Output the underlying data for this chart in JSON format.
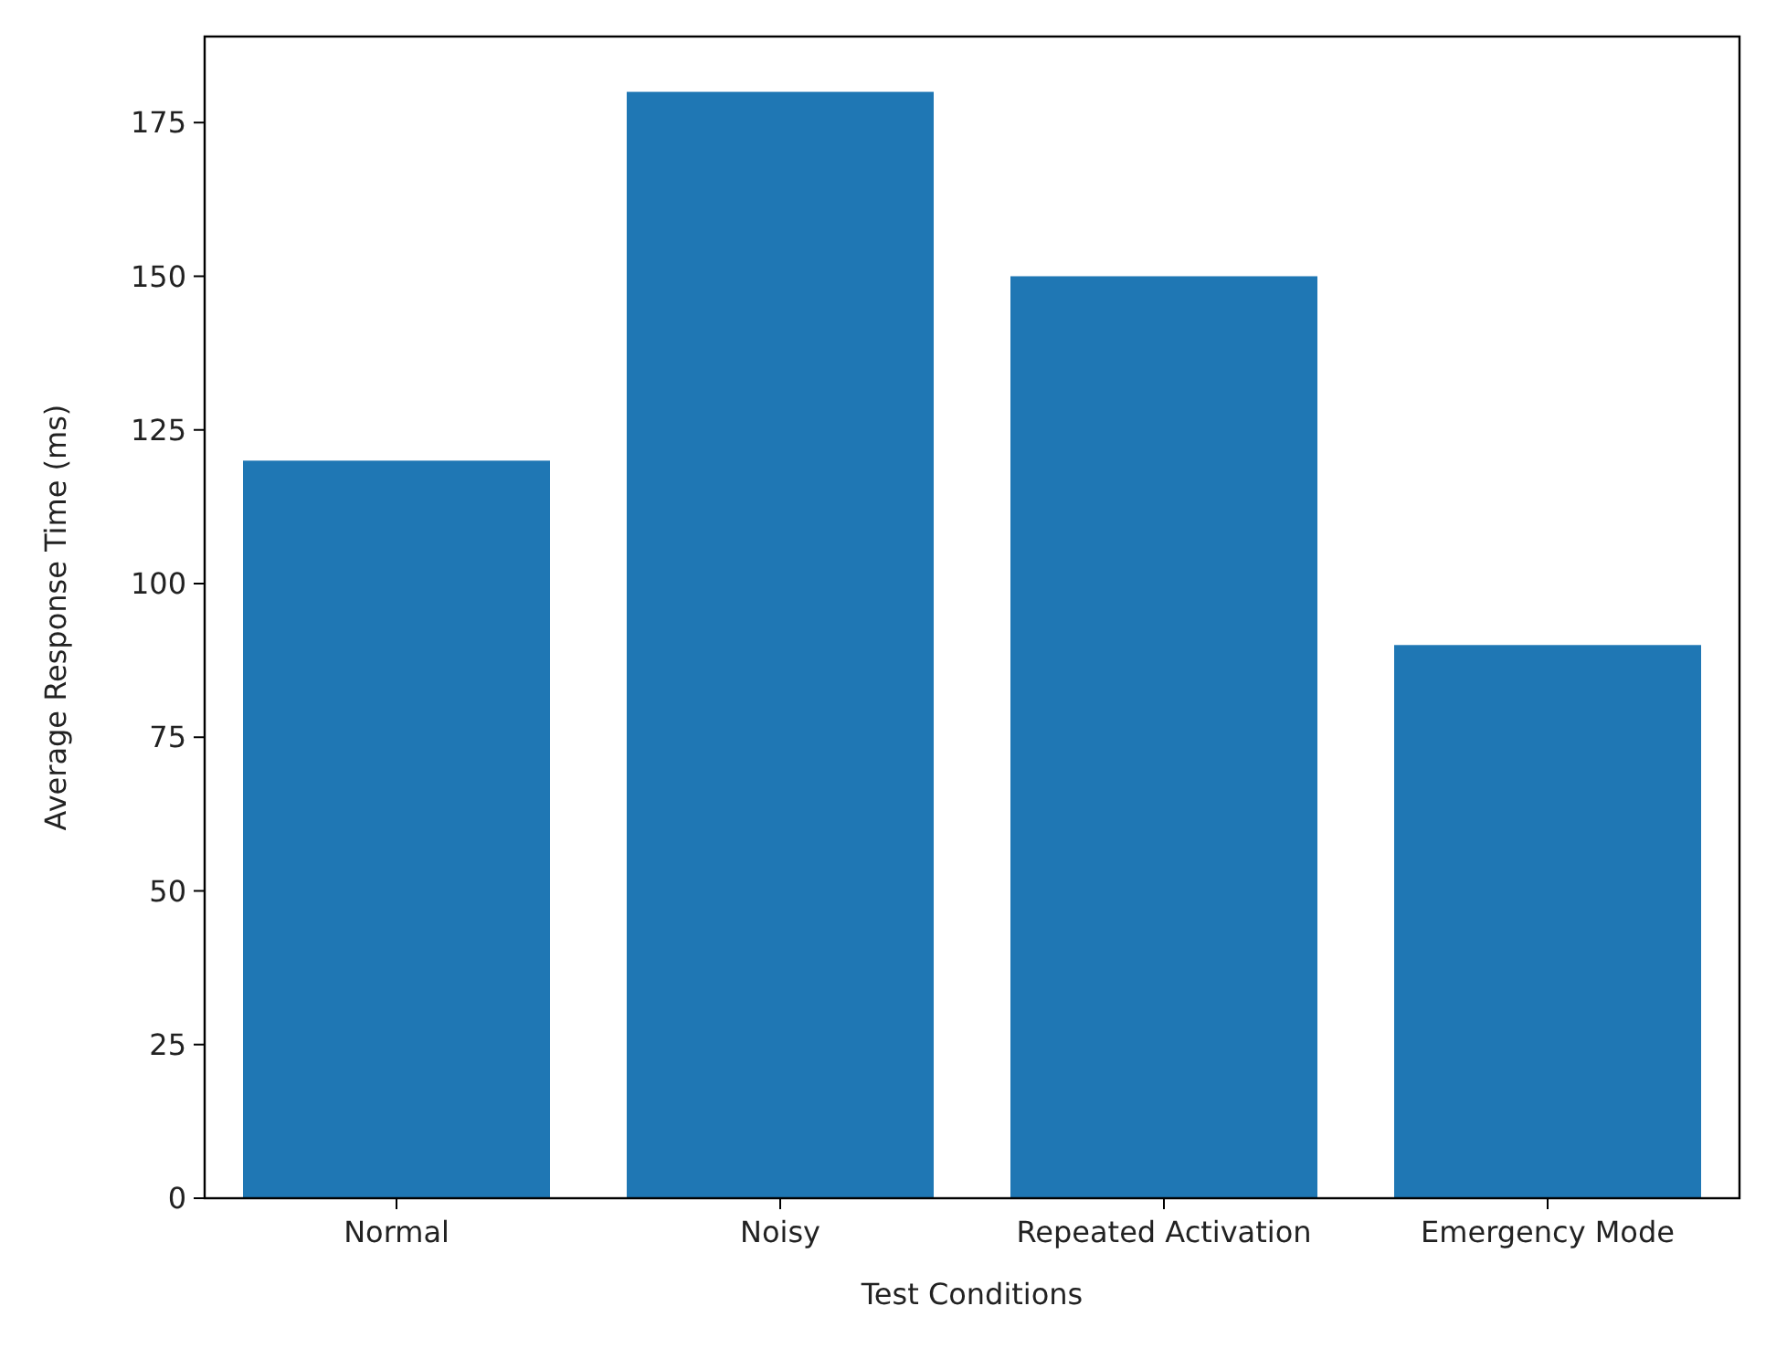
{
  "chart_data": {
    "type": "bar",
    "xlabel": "Test Conditions",
    "ylabel": "Average Response Time (ms)",
    "categories": [
      "Normal",
      "Noisy",
      "Repeated Activation",
      "Emergency Mode"
    ],
    "values": [
      120,
      180,
      150,
      90
    ],
    "color": "#1f77b4",
    "ylim": [
      0,
      189
    ],
    "yticks": [
      0,
      25,
      50,
      75,
      100,
      125,
      150,
      175
    ],
    "grid": false
  }
}
